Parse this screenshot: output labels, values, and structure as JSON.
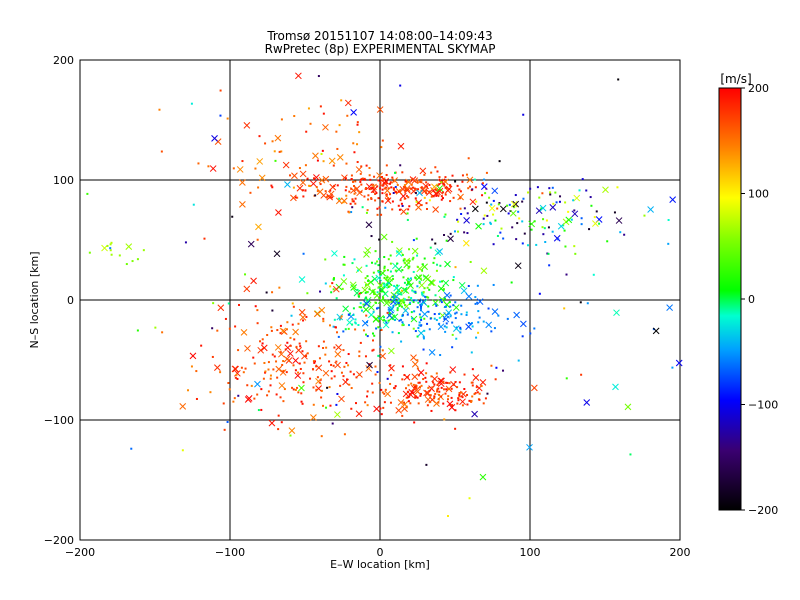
{
  "chart_data": {
    "type": "scatter",
    "title": "Tromsø 20151107 14:08:00–14:09:43",
    "subtitle": "RwPretec (8p) EXPERIMENTAL SKYMAP",
    "xlabel": "E–W location [km]",
    "ylabel": "N–S location [km]",
    "xlim": [
      -200,
      200
    ],
    "ylim": [
      -200,
      200
    ],
    "xticks": [
      -200,
      -100,
      0,
      100,
      200
    ],
    "yticks": [
      -200,
      -100,
      0,
      100,
      200
    ],
    "grid": true,
    "colorbar": {
      "label": "[m/s]",
      "range": [
        -200,
        200
      ],
      "ticks": [
        200,
        100,
        0,
        -100,
        -200
      ],
      "colormap": "rainbow"
    },
    "clusters": [
      {
        "name": "north-band",
        "cx": 10,
        "cy": 92,
        "sx": 30,
        "sy": 8,
        "n": 260,
        "vmin": 150,
        "vmax": 200
      },
      {
        "name": "north-east",
        "cx": 85,
        "cy": 72,
        "sx": 45,
        "sy": 15,
        "n": 150,
        "vmin": -200,
        "vmax": 100
      },
      {
        "name": "center-green",
        "cx": 8,
        "cy": 10,
        "sx": 20,
        "sy": 18,
        "n": 300,
        "vmin": -20,
        "vmax": 60
      },
      {
        "name": "center-cyan",
        "cx": 35,
        "cy": -15,
        "sx": 25,
        "sy": 12,
        "n": 150,
        "vmin": -80,
        "vmax": -30
      },
      {
        "name": "south-west",
        "cx": -55,
        "cy": -55,
        "sx": 30,
        "sy": 22,
        "n": 240,
        "vmin": 140,
        "vmax": 200
      },
      {
        "name": "south-east",
        "cx": 35,
        "cy": -75,
        "sx": 20,
        "sy": 10,
        "n": 170,
        "vmin": 150,
        "vmax": 200
      },
      {
        "name": "north-west-red",
        "cx": -50,
        "cy": 120,
        "sx": 40,
        "sy": 25,
        "n": 80,
        "vmin": 130,
        "vmax": 200
      },
      {
        "name": "west-green",
        "cx": -180,
        "cy": 40,
        "sx": 12,
        "sy": 5,
        "n": 14,
        "vmin": 40,
        "vmax": 80
      },
      {
        "name": "scatter",
        "cx": 0,
        "cy": 0,
        "sx": 120,
        "sy": 90,
        "n": 160,
        "vmin": -200,
        "vmax": 200
      }
    ]
  }
}
